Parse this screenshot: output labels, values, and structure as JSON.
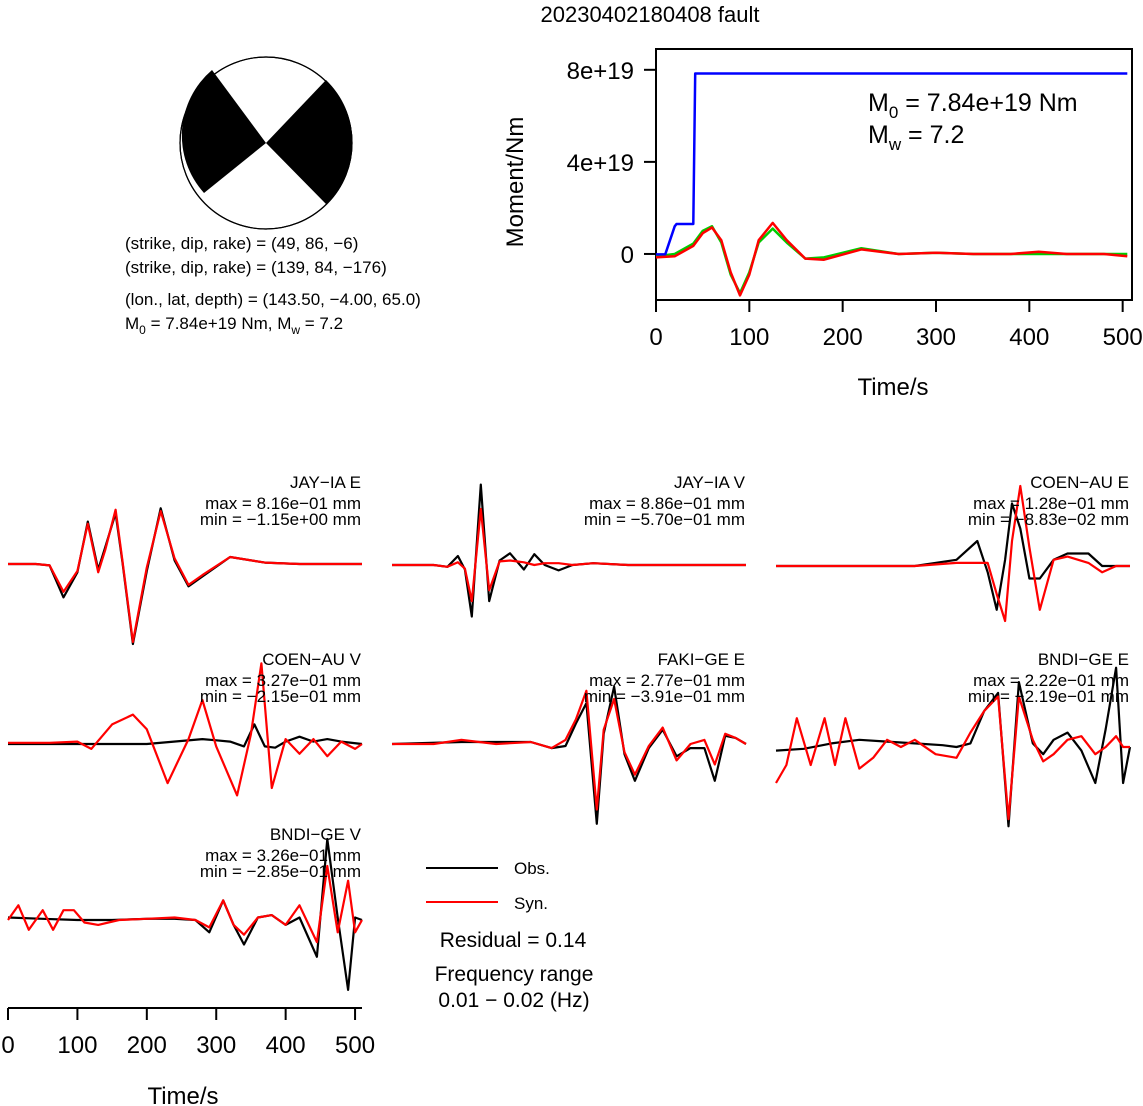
{
  "title": "20230402180408 fault",
  "mechanism": {
    "plane1": "(strike, dip, rake) = (49, 86, −6)",
    "plane2": "(strike, dip, rake) = (139, 84, −176)",
    "location": "(lon., lat, depth) = (143.50, −4.00, 65.0)",
    "moment_line": {
      "m0": "M",
      "m0_sub": "0",
      "m0_rest": " = 7.84e+19 Nm, M",
      "mw_sub": "w",
      "mw_rest": " = 7.2"
    },
    "beachball_colors": {
      "compressional": "#000000",
      "dilatational": "#ffffff"
    }
  },
  "legend": {
    "obs_label": "Obs.",
    "syn_label": "Syn.",
    "obs_color": "#000000",
    "syn_color": "#ff0000",
    "residual": "Residual = 0.14",
    "freq_title": "Frequency range",
    "freq_range": "0.01 − 0.02 (Hz)"
  },
  "chart_data": [
    {
      "type": "line",
      "name": "moment-rate",
      "xlabel": "Time/s",
      "ylabel": "Moment/Nm",
      "xlim": [
        0,
        510
      ],
      "ylim": [
        -2e+19,
        8.6e+19
      ],
      "xticks": [
        0,
        100,
        200,
        300,
        400,
        500
      ],
      "xtick_labels": [
        "0",
        "100",
        "200",
        "300",
        "400",
        "500"
      ],
      "yticks": [
        0,
        4e+19,
        8e+19
      ],
      "ytick_labels": [
        "0",
        "4e+19",
        "8e+19"
      ],
      "annotation": {
        "m0_sym": "M",
        "m0_sub": "0",
        "m0_val": " = 7.84e+19 Nm",
        "mw_sym": "M",
        "mw_sub": "w",
        "mw_val": " = 7.2"
      },
      "series": [
        {
          "color": "#0000ff",
          "x": [
            0,
            10,
            20,
            22,
            30,
            40,
            42,
            505
          ],
          "y": [
            -2e+17,
            -1e+17,
            1.2e+19,
            1.3e+19,
            1.3e+19,
            1.3e+19,
            7.84e+19,
            7.84e+19
          ]
        },
        {
          "color": "#ff0000",
          "x": [
            0,
            20,
            40,
            50,
            60,
            70,
            80,
            90,
            100,
            110,
            125,
            140,
            160,
            180,
            220,
            260,
            300,
            340,
            380,
            410,
            440,
            480,
            505
          ],
          "y": [
            -1.5e+18,
            -1e+18,
            3.5e+18,
            9e+18,
            1.15e+19,
            6e+18,
            -8e+18,
            -1.8e+19,
            -9e+18,
            6e+18,
            1.35e+19,
            6e+18,
            -2e+18,
            -2.5e+18,
            2e+18,
            0,
            5e+17,
            0,
            0,
            1e+18,
            0,
            0,
            -1e+18
          ]
        },
        {
          "color": "#00cc00",
          "x": [
            0,
            20,
            40,
            50,
            60,
            70,
            80,
            90,
            100,
            110,
            125,
            140,
            160,
            180,
            220,
            260,
            300,
            340,
            380,
            410,
            440,
            480,
            505
          ],
          "y": [
            -1e+18,
            0,
            4.5e+18,
            1e+19,
            1.2e+19,
            5e+18,
            -9e+18,
            -1.7e+19,
            -8e+18,
            5e+18,
            1.1e+19,
            5e+18,
            -2e+18,
            -1.5e+18,
            2.5e+18,
            0,
            5e+17,
            0,
            0,
            0,
            0,
            0,
            0
          ]
        }
      ]
    },
    {
      "type": "line",
      "station": "JAY−IA E",
      "max_text": "max = 8.16e−01 mm",
      "min_text": "min = −1.15e+00 mm",
      "max": 0.816,
      "min": -1.15,
      "xlim": [
        0,
        510
      ],
      "series": [
        {
          "name": "Obs.",
          "color": "#000000",
          "x": [
            0,
            40,
            60,
            80,
            100,
            115,
            130,
            140,
            155,
            165,
            180,
            200,
            220,
            240,
            260,
            280,
            320,
            370,
            420,
            510
          ],
          "y": [
            0,
            0,
            -0.02,
            -0.48,
            -0.12,
            0.61,
            -0.08,
            0.24,
            0.73,
            0.02,
            -1.15,
            -0.1,
            0.8,
            0.05,
            -0.32,
            -0.18,
            0.1,
            0.02,
            0,
            0
          ]
        },
        {
          "name": "Syn.",
          "color": "#ff0000",
          "x": [
            0,
            40,
            60,
            80,
            100,
            115,
            130,
            140,
            155,
            165,
            180,
            200,
            220,
            240,
            260,
            280,
            320,
            370,
            420,
            510
          ],
          "y": [
            0,
            0,
            -0.02,
            -0.4,
            -0.1,
            0.58,
            -0.12,
            0.2,
            0.78,
            0.04,
            -1.12,
            -0.05,
            0.76,
            0.08,
            -0.3,
            -0.16,
            0.1,
            0.02,
            0,
            0
          ]
        }
      ]
    },
    {
      "type": "line",
      "station": "JAY−IA V",
      "max_text": "max = 8.86e−01 mm",
      "min_text": "min = −5.70e−01 mm",
      "max": 0.886,
      "min": -0.57,
      "xlim": [
        0,
        510
      ],
      "series": [
        {
          "name": "Obs.",
          "color": "#000000",
          "x": [
            0,
            60,
            80,
            95,
            105,
            115,
            128,
            140,
            155,
            170,
            190,
            205,
            220,
            240,
            260,
            290,
            340,
            400,
            510
          ],
          "y": [
            0,
            0,
            -0.02,
            0.1,
            -0.05,
            -0.57,
            0.89,
            -0.4,
            0.05,
            0.13,
            -0.05,
            0.12,
            0,
            -0.06,
            0,
            0.02,
            0,
            0,
            0
          ]
        },
        {
          "name": "Syn.",
          "color": "#ff0000",
          "x": [
            0,
            60,
            80,
            95,
            105,
            115,
            128,
            140,
            155,
            170,
            190,
            205,
            220,
            240,
            260,
            290,
            340,
            400,
            510
          ],
          "y": [
            0,
            0,
            -0.02,
            0.03,
            -0.04,
            -0.4,
            0.62,
            -0.28,
            0.04,
            0.05,
            0.03,
            0,
            0.02,
            0.02,
            0,
            0.02,
            0,
            0,
            0
          ]
        }
      ]
    },
    {
      "type": "line",
      "station": "COEN−AU E",
      "max_text": "max = 1.28e−01 mm",
      "min_text": "min = −8.83e−02 mm",
      "max": 0.128,
      "min": -0.0883,
      "xlim": [
        0,
        510
      ],
      "series": [
        {
          "name": "Obs.",
          "color": "#000000",
          "x": [
            0,
            100,
            200,
            260,
            290,
            305,
            318,
            330,
            340,
            352,
            365,
            380,
            400,
            420,
            450,
            470,
            490,
            510
          ],
          "y": [
            0,
            0,
            0,
            0.01,
            0.04,
            -0.01,
            -0.07,
            0.01,
            0.1,
            0.06,
            -0.02,
            -0.02,
            0.01,
            0.02,
            0.02,
            0,
            0,
            0
          ]
        },
        {
          "name": "Syn.",
          "color": "#ff0000",
          "x": [
            0,
            100,
            200,
            260,
            290,
            305,
            318,
            330,
            340,
            352,
            365,
            380,
            400,
            420,
            450,
            470,
            490,
            510
          ],
          "y": [
            0,
            0,
            0,
            0.005,
            0.005,
            0.005,
            -0.045,
            -0.088,
            0.04,
            0.128,
            0.03,
            -0.07,
            0.01,
            0.015,
            0.005,
            -0.01,
            0,
            0
          ]
        }
      ]
    },
    {
      "type": "line",
      "station": "COEN−AU V",
      "max_text": "max = 3.27e−01 mm",
      "min_text": "min = −2.15e−01 mm",
      "max": 0.327,
      "min": -0.215,
      "xlim": [
        0,
        510
      ],
      "series": [
        {
          "name": "Obs.",
          "color": "#000000",
          "x": [
            0,
            100,
            200,
            280,
            300,
            320,
            340,
            355,
            370,
            385,
            400,
            420,
            440,
            460,
            480,
            510
          ],
          "y": [
            0,
            0,
            0,
            0.02,
            0.015,
            0.01,
            -0.01,
            0.08,
            -0.01,
            -0.015,
            0.01,
            0.03,
            0.01,
            0.02,
            0.01,
            0
          ]
        },
        {
          "name": "Syn.",
          "color": "#ff0000",
          "x": [
            0,
            60,
            100,
            120,
            150,
            180,
            200,
            230,
            260,
            280,
            300,
            330,
            350,
            365,
            380,
            400,
            420,
            440,
            460,
            480,
            500,
            510
          ],
          "y": [
            0.005,
            0.005,
            0.01,
            -0.02,
            0.08,
            0.12,
            0.06,
            -0.16,
            0.02,
            0.18,
            -0.01,
            -0.21,
            0.04,
            0.33,
            -0.18,
            0.02,
            -0.04,
            0.02,
            -0.05,
            0.01,
            -0.02,
            0
          ]
        }
      ]
    },
    {
      "type": "line",
      "station": "FAKI−GE E",
      "max_text": "max = 2.77e−01 mm",
      "min_text": "min = −3.91e−01 mm",
      "max": 0.277,
      "min": -0.391,
      "xlim": [
        0,
        510
      ],
      "series": [
        {
          "name": "Obs.",
          "color": "#000000",
          "x": [
            0,
            100,
            200,
            230,
            250,
            265,
            280,
            295,
            305,
            320,
            335,
            350,
            370,
            390,
            410,
            430,
            450,
            465,
            480,
            495,
            510
          ],
          "y": [
            0,
            0.01,
            0.01,
            -0.02,
            -0.01,
            0.1,
            0.2,
            -0.39,
            0.05,
            0.28,
            -0.05,
            -0.18,
            -0.02,
            0.07,
            -0.06,
            -0.02,
            -0.02,
            -0.18,
            0.04,
            0.03,
            0
          ]
        },
        {
          "name": "Syn.",
          "color": "#ff0000",
          "x": [
            0,
            60,
            100,
            150,
            200,
            230,
            250,
            265,
            280,
            295,
            305,
            320,
            335,
            350,
            370,
            390,
            410,
            430,
            450,
            465,
            480,
            495,
            510
          ],
          "y": [
            0,
            0,
            0.02,
            0,
            0.01,
            -0.02,
            0.02,
            0.12,
            0.26,
            -0.32,
            0.07,
            0.22,
            -0.04,
            -0.15,
            -0.01,
            0.08,
            -0.08,
            0.0,
            0.02,
            -0.1,
            0.05,
            0.03,
            0
          ]
        }
      ]
    },
    {
      "type": "line",
      "station": "BNDI−GE E",
      "max_text": "max = 2.22e−01 mm",
      "min_text": "min = −2.19e−01 mm",
      "max": 0.222,
      "min": -0.219,
      "xlim": [
        0,
        510
      ],
      "series": [
        {
          "name": "Obs.",
          "color": "#000000",
          "x": [
            0,
            40,
            80,
            120,
            160,
            200,
            240,
            260,
            280,
            300,
            320,
            335,
            350,
            370,
            385,
            400,
            420,
            440,
            460,
            475,
            490,
            500,
            510
          ],
          "y": [
            -0.01,
            -0.005,
            0.01,
            0.02,
            0.015,
            0.01,
            0.005,
            0,
            0.01,
            0.1,
            0.15,
            -0.22,
            0.18,
            0.01,
            -0.02,
            0.02,
            0.04,
            -0.01,
            -0.1,
            0.05,
            0.22,
            -0.1,
            0
          ]
        },
        {
          "name": "Syn.",
          "color": "#ff0000",
          "x": [
            0,
            15,
            30,
            50,
            70,
            85,
            100,
            120,
            140,
            160,
            180,
            200,
            230,
            260,
            280,
            300,
            320,
            335,
            350,
            370,
            385,
            400,
            420,
            440,
            460,
            475,
            490,
            500,
            510
          ],
          "y": [
            -0.1,
            -0.05,
            0.08,
            -0.05,
            0.08,
            -0.05,
            0.08,
            -0.06,
            -0.03,
            0.02,
            0,
            0.02,
            -0.02,
            -0.03,
            0.04,
            0.1,
            0.14,
            -0.2,
            0.14,
            0.02,
            -0.04,
            -0.02,
            0.02,
            0.03,
            -0.02,
            0,
            0.03,
            0,
            0
          ]
        }
      ]
    },
    {
      "type": "line",
      "station": "BNDI−GE V",
      "max_text": "max = 3.26e−01 mm",
      "min_text": "min = −2.85e−01 mm",
      "max": 0.326,
      "min": -0.285,
      "xlim": [
        0,
        510
      ],
      "xticks": [
        0,
        100,
        200,
        300,
        400,
        500
      ],
      "xtick_labels": [
        "0",
        "100",
        "200",
        "300",
        "400",
        "500"
      ],
      "xlabel": "Time/s",
      "series": [
        {
          "name": "Obs.",
          "color": "#000000",
          "x": [
            0,
            50,
            100,
            150,
            200,
            240,
            270,
            290,
            310,
            325,
            340,
            360,
            380,
            400,
            420,
            445,
            460,
            475,
            490,
            500,
            510
          ],
          "y": [
            0.01,
            0.005,
            0,
            0,
            0.005,
            0.005,
            0,
            -0.05,
            0.08,
            -0.02,
            -0.1,
            0.01,
            0.02,
            -0.02,
            0.01,
            -0.15,
            0.33,
            0.01,
            -0.285,
            0.01,
            0
          ]
        },
        {
          "name": "Syn.",
          "color": "#ff0000",
          "x": [
            0,
            15,
            30,
            50,
            65,
            80,
            95,
            110,
            130,
            160,
            200,
            240,
            270,
            290,
            310,
            325,
            340,
            360,
            380,
            400,
            420,
            445,
            460,
            475,
            490,
            500,
            510
          ],
          "y": [
            0,
            0.06,
            -0.04,
            0.04,
            -0.04,
            0.04,
            0.04,
            -0.01,
            -0.02,
            0,
            0.005,
            0.01,
            0,
            -0.03,
            0.08,
            -0.02,
            -0.06,
            0.01,
            0.02,
            -0.02,
            0.06,
            -0.09,
            0.22,
            -0.05,
            0.16,
            -0.05,
            0
          ]
        }
      ]
    }
  ]
}
